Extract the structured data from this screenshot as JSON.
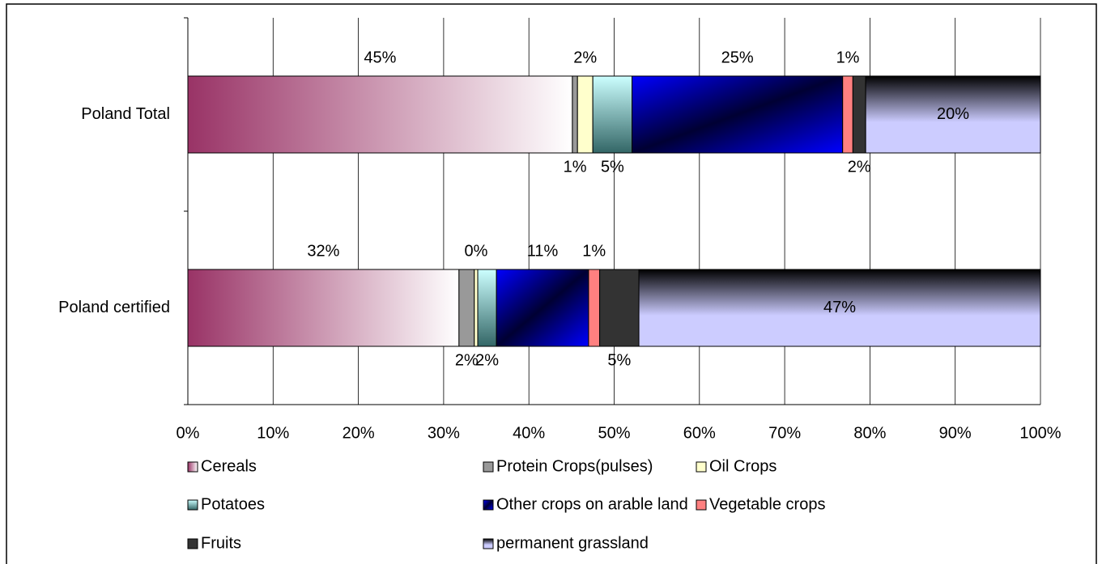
{
  "chart_data": {
    "type": "stacked-bar-horizontal-100",
    "categories": [
      "Poland Total",
      "Poland certified"
    ],
    "xlim": [
      0,
      100
    ],
    "xticks": [
      {
        "value": 0,
        "label": "0%"
      },
      {
        "value": 10,
        "label": "10%"
      },
      {
        "value": 20,
        "label": "20%"
      },
      {
        "value": 30,
        "label": "30%"
      },
      {
        "value": 40,
        "label": "40%"
      },
      {
        "value": 50,
        "label": "50%"
      },
      {
        "value": 60,
        "label": "60%"
      },
      {
        "value": 70,
        "label": "70%"
      },
      {
        "value": 80,
        "label": "80%"
      },
      {
        "value": 90,
        "label": "90%"
      },
      {
        "value": 100,
        "label": "100%"
      }
    ],
    "grid": true,
    "series": [
      {
        "name": "Cereals",
        "color": "#993366",
        "values": [
          45.1,
          31.8
        ],
        "value_labels": [
          "45%",
          "32%"
        ]
      },
      {
        "name": "Protein Crops(pulses)",
        "color": "#999999",
        "values": [
          0.6,
          1.8
        ],
        "value_labels": [
          "1%",
          "2%"
        ]
      },
      {
        "name": "Oil Crops",
        "color": "#ffffcc",
        "values": [
          1.8,
          0.4
        ],
        "value_labels": [
          "2%",
          "0%"
        ]
      },
      {
        "name": "Potatoes",
        "color": "#ccffff",
        "values": [
          4.6,
          2.2
        ],
        "value_labels": [
          "5%",
          "2%"
        ]
      },
      {
        "name": "Other crops on arable land",
        "color": "#0000ff",
        "values": [
          24.7,
          10.8
        ],
        "value_labels": [
          "25%",
          "11%"
        ]
      },
      {
        "name": "Vegetable crops",
        "color": "#ff8080",
        "values": [
          1.2,
          1.3
        ],
        "value_labels": [
          "1%",
          "1%"
        ]
      },
      {
        "name": "Fruits",
        "color": "#333333",
        "values": [
          1.5,
          4.6
        ],
        "value_labels": [
          "2%",
          "5%"
        ]
      },
      {
        "name": "permanent grassland",
        "color": "#ccccff",
        "values": [
          20.5,
          47.1
        ],
        "value_labels": [
          "20%",
          "47%"
        ]
      }
    ]
  }
}
